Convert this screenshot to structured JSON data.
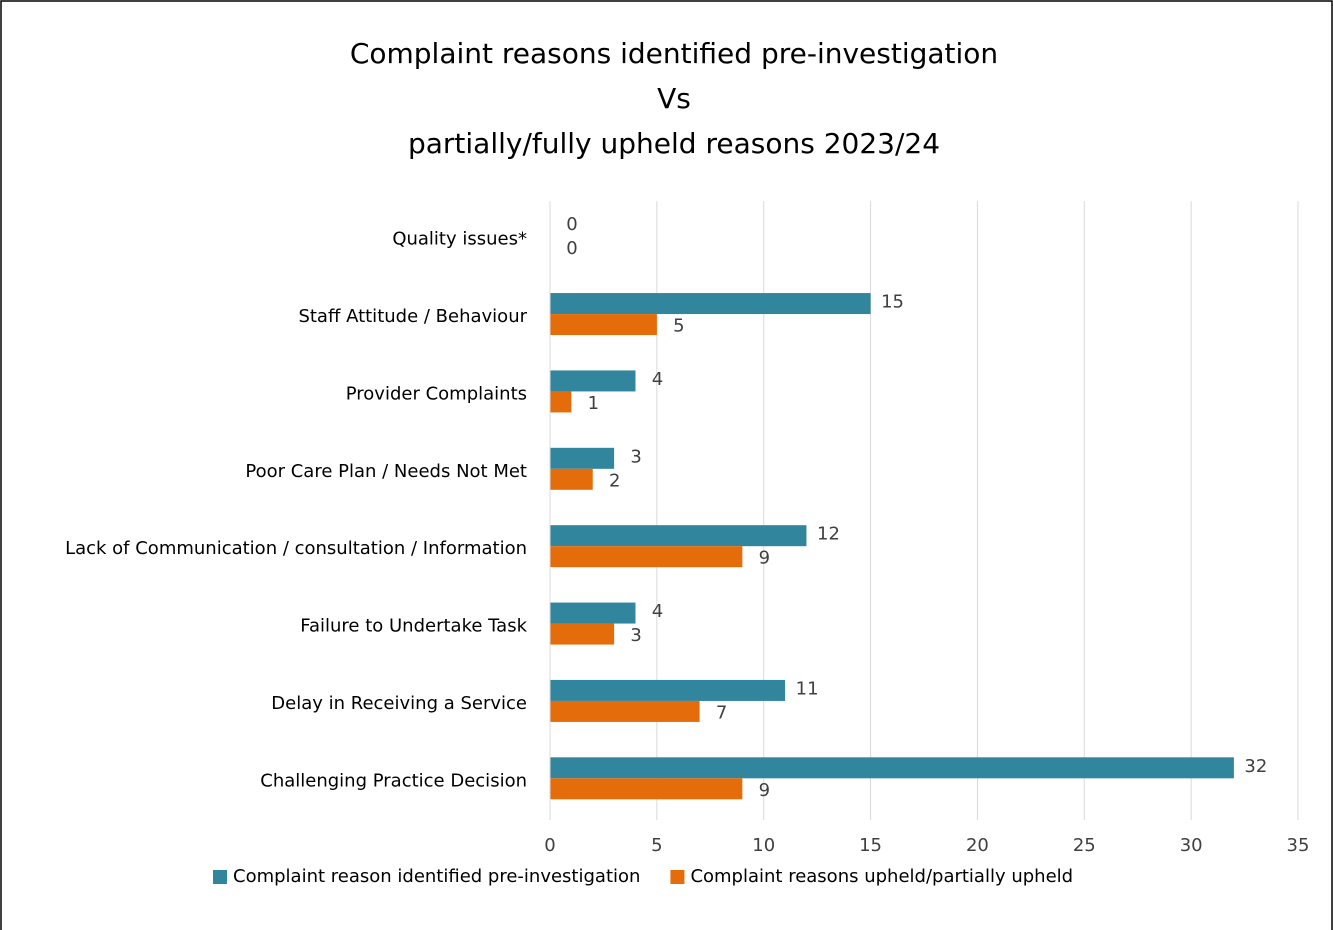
{
  "chart_data": {
    "type": "barh",
    "title": [
      "Complaint reasons identified pre-investigation",
      "Vs",
      "partially/fully upheld reasons 2023/24"
    ],
    "categories": [
      "Quality issues*",
      "Staff Attitude / Behaviour",
      "Provider Complaints",
      "Poor Care Plan / Needs Not Met",
      "Lack of Communication / consultation / Information",
      "Failure to Undertake Task",
      "Delay in Receiving a Service",
      "Challenging Practice Decision"
    ],
    "series": [
      {
        "name": "Complaint reason identified pre-investigation",
        "color": "#31859c",
        "values": [
          0,
          15,
          4,
          3,
          12,
          4,
          11,
          32
        ]
      },
      {
        "name": "Complaint reasons upheld/partially upheld",
        "color": "#e46c0a",
        "values": [
          0,
          5,
          1,
          2,
          9,
          3,
          7,
          9
        ]
      }
    ],
    "xlim": [
      0,
      35
    ],
    "xticks": [
      0,
      5,
      10,
      15,
      20,
      25,
      30,
      35
    ],
    "grid": true,
    "legend": "bottom"
  }
}
